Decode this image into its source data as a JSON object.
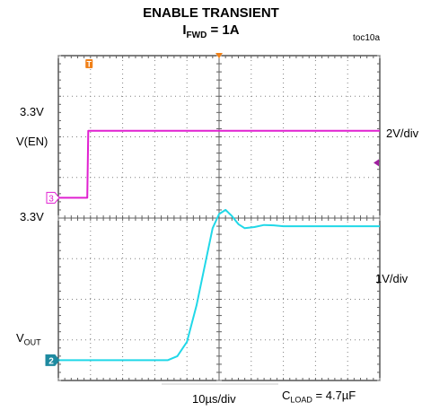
{
  "header": {
    "title": "ENABLE TRANSIENT",
    "subtitle_var": "I",
    "subtitle_sub": "FWD",
    "subtitle_rest": " = 1A",
    "figure_id": "toc10a"
  },
  "labels": {
    "ch3_level": "3.3V",
    "ch3_name": "V(EN)",
    "ch3_scale": "2V/div",
    "ch2_level": "3.3V",
    "ch2_scale": "1V/div",
    "ch2_name_main": "V",
    "ch2_name_sub": "OUT",
    "timebase": "10µs/div",
    "load_main": "C",
    "load_sub": "LOAD",
    "load_rest": " = 4.7µF"
  },
  "markers": {
    "trigger": "T",
    "ch3": "3",
    "ch2": "2"
  },
  "colors": {
    "ch3": "#e020d0",
    "ch2": "#20d8e8",
    "trigger": "#f08018",
    "grid": "#808080",
    "frame": "#000000"
  },
  "chart_data": {
    "type": "line",
    "title": "ENABLE TRANSIENT",
    "x_unit": "µs",
    "time_per_div": 10,
    "x_divisions": 10,
    "y_divisions": 8,
    "xlim": [
      0,
      100
    ],
    "series": [
      {
        "name": "V(EN)",
        "channel": 3,
        "volts_per_div": 2,
        "zero_div_from_top": 3.5,
        "x": [
          0,
          9.0,
          9.3,
          100
        ],
        "y": [
          0,
          0,
          3.3,
          3.3
        ]
      },
      {
        "name": "VOUT",
        "channel": 2,
        "volts_per_div": 1,
        "zero_div_from_top": 7.5,
        "x": [
          0,
          34,
          37,
          40,
          43,
          46,
          48,
          50,
          52,
          54,
          56,
          58,
          61,
          64,
          67,
          70,
          75,
          80,
          90,
          100
        ],
        "y": [
          0,
          0,
          0.1,
          0.45,
          1.35,
          2.5,
          3.25,
          3.6,
          3.7,
          3.55,
          3.35,
          3.25,
          3.28,
          3.33,
          3.32,
          3.3,
          3.3,
          3.3,
          3.3,
          3.3
        ]
      }
    ]
  }
}
